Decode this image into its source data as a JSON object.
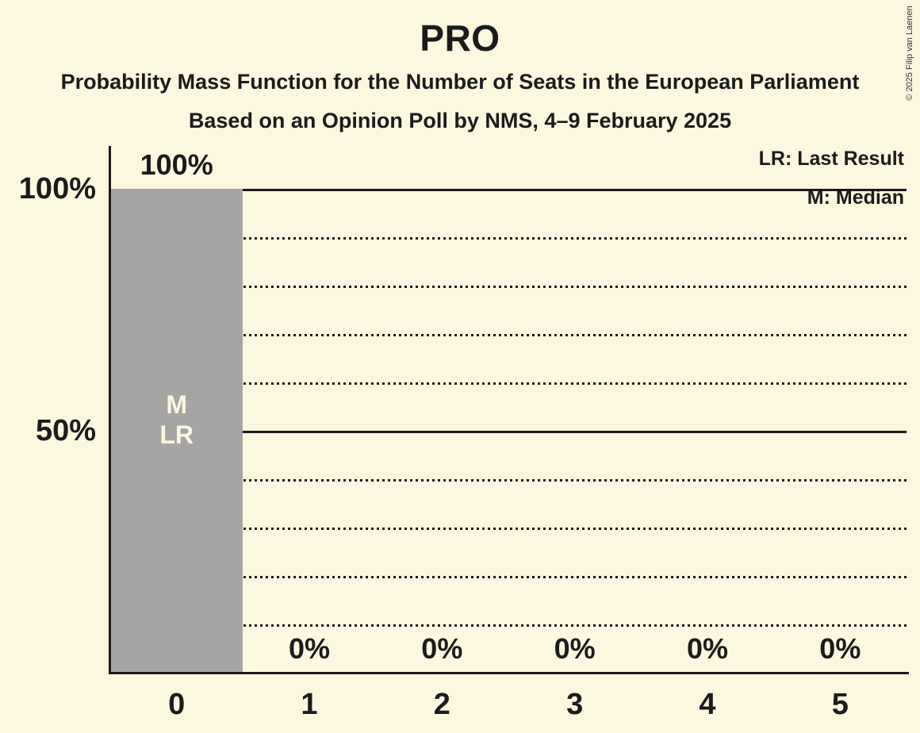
{
  "colors": {
    "background": "#FCF7DF",
    "bar": "#A5A5A5",
    "text": "#1B1B1B",
    "bar_annotation_text": "#FCF7DF",
    "copyright_text": "#333333"
  },
  "header": {
    "title": "PRO",
    "subtitle1": "Probability Mass Function for the Number of Seats in the European Parliament",
    "subtitle2": "Based on an Opinion Poll by NMS, 4–9 February 2025"
  },
  "legend": {
    "lr": "LR: Last Result",
    "m": "M: Median"
  },
  "copyright": "© 2025 Filip van Laenen",
  "chart_data": {
    "type": "bar",
    "title": "PRO",
    "subtitle": "Probability Mass Function for the Number of Seats in the European Parliament",
    "poll_note": "Based on an Opinion Poll by NMS, 4–9 February 2025",
    "categories": [
      "0",
      "1",
      "2",
      "3",
      "4",
      "5"
    ],
    "values": [
      100,
      0,
      0,
      0,
      0,
      0
    ],
    "value_labels": [
      "100%",
      "0%",
      "0%",
      "0%",
      "0%",
      "0%"
    ],
    "xlabel": "",
    "ylabel": "",
    "ylim": [
      0,
      100
    ],
    "yticks": [
      {
        "value": 100,
        "label": "100%"
      },
      {
        "value": 50,
        "label": "50%"
      }
    ],
    "solid_gridlines": [
      100,
      50
    ],
    "dotted_gridlines": [
      90,
      80,
      70,
      60,
      40,
      30,
      20,
      10
    ],
    "annotations": [
      {
        "category_index": 0,
        "lines": [
          "M",
          "LR"
        ]
      }
    ],
    "legend_entries": [
      "LR: Last Result",
      "M: Median"
    ],
    "legend_position": "top-right",
    "grid": "horizontal-dotted"
  }
}
